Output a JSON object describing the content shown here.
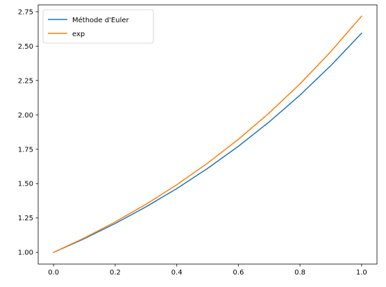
{
  "chart_data": {
    "type": "line",
    "title": "",
    "xlabel": "",
    "ylabel": "",
    "xlim": [
      -0.05,
      1.05
    ],
    "ylim": [
      0.915,
      2.8
    ],
    "grid": false,
    "legend_position": "top-left",
    "x_ticks": [
      0.0,
      0.2,
      0.4,
      0.6,
      0.8,
      1.0
    ],
    "x_tick_labels": [
      "0.0",
      "0.2",
      "0.4",
      "0.6",
      "0.8",
      "1.0"
    ],
    "y_ticks": [
      1.0,
      1.25,
      1.5,
      1.75,
      2.0,
      2.25,
      2.5,
      2.75
    ],
    "y_tick_labels": [
      "1.00",
      "1.25",
      "1.50",
      "1.75",
      "2.00",
      "2.25",
      "2.50",
      "2.75"
    ],
    "x": [
      0.0,
      0.1,
      0.2,
      0.3,
      0.4,
      0.5,
      0.6,
      0.7,
      0.8,
      0.9,
      1.0
    ],
    "series": [
      {
        "name": "Méthode d'Euler",
        "color": "#1f77b4",
        "values": [
          1.0,
          1.1,
          1.21,
          1.331,
          1.4641,
          1.61051,
          1.771561,
          1.9487171,
          2.14358881,
          2.357947691,
          2.59374246
        ]
      },
      {
        "name": "exp",
        "color": "#ff7f0e",
        "values": [
          1.0,
          1.105171,
          1.221403,
          1.349859,
          1.491825,
          1.648721,
          1.822119,
          2.013753,
          2.225541,
          2.459603,
          2.718282
        ]
      }
    ]
  }
}
